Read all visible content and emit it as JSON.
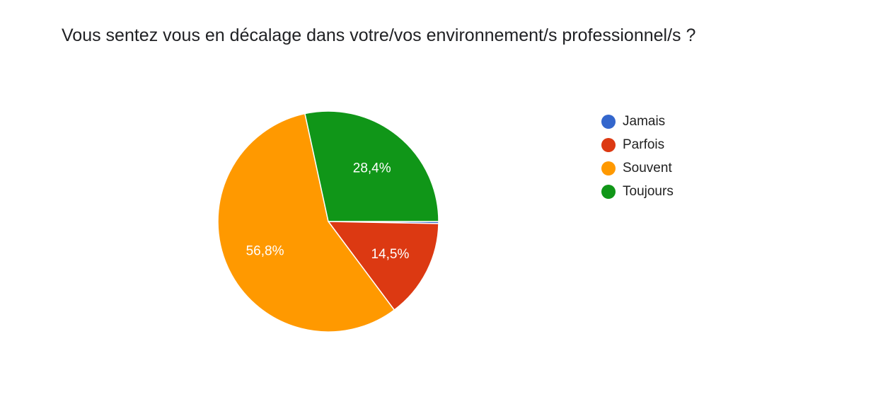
{
  "chart_data": {
    "type": "pie",
    "title": "Vous sentez vous en décalage dans votre/vos environnement/s professionnel/s ?",
    "categories": [
      "Jamais",
      "Parfois",
      "Souvent",
      "Toujours"
    ],
    "values": [
      0.3,
      14.5,
      56.8,
      28.4
    ],
    "data_labels": [
      "",
      "14,5%",
      "56,8%",
      "28,4%"
    ],
    "colors": [
      "#3366cc",
      "#dc3912",
      "#ff9900",
      "#109618"
    ],
    "legend_placement": "right"
  }
}
